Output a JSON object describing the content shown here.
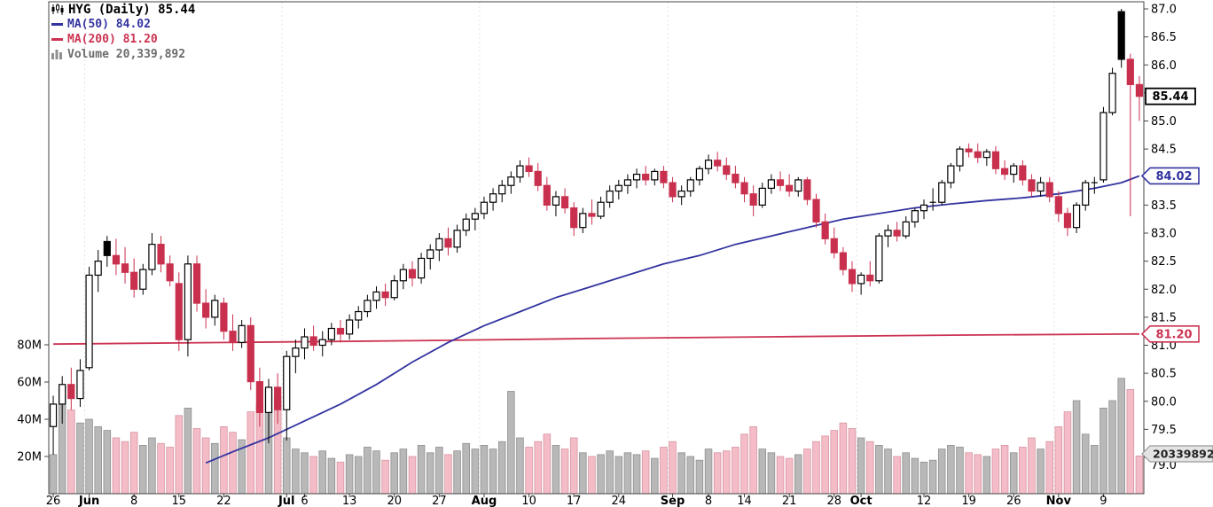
{
  "chart_data": {
    "type": "candlestick",
    "symbol": "HYG",
    "timeframe": "Daily",
    "legend": {
      "title": "HYG (Daily) 85.44",
      "ma50": "MA(50) 84.02",
      "ma200": "MA(200) 81.20",
      "volume": "Volume 20,339,892"
    },
    "last": {
      "price": "85.44",
      "ma50": "84.02",
      "ma200": "81.20",
      "volume": "20339892"
    },
    "price_axis": {
      "min": 79.0,
      "max": 87.0,
      "step": 0.5,
      "hidden_ticks": [
        85.5,
        84.0
      ]
    },
    "volume_axis": {
      "ticks": [
        {
          "v": 80,
          "t": "80M"
        },
        {
          "v": 60,
          "t": "60M"
        },
        {
          "v": 40,
          "t": "40M"
        },
        {
          "v": 20,
          "t": "20M"
        }
      ]
    },
    "x_labels": [
      {
        "i": 0,
        "t": "26"
      },
      {
        "i": 4,
        "t": "Jun",
        "b": 1
      },
      {
        "i": 9,
        "t": "8"
      },
      {
        "i": 14,
        "t": "15"
      },
      {
        "i": 19,
        "t": "22"
      },
      {
        "i": 26,
        "t": "Jul",
        "b": 1
      },
      {
        "i": 28,
        "t": "6"
      },
      {
        "i": 33,
        "t": "13"
      },
      {
        "i": 38,
        "t": "20"
      },
      {
        "i": 43,
        "t": "27"
      },
      {
        "i": 48,
        "t": "Aug",
        "b": 1
      },
      {
        "i": 53,
        "t": "10"
      },
      {
        "i": 58,
        "t": "17"
      },
      {
        "i": 63,
        "t": "24"
      },
      {
        "i": 69,
        "t": "Sep",
        "b": 1
      },
      {
        "i": 73,
        "t": "8"
      },
      {
        "i": 77,
        "t": "14"
      },
      {
        "i": 82,
        "t": "21"
      },
      {
        "i": 87,
        "t": "28"
      },
      {
        "i": 90,
        "t": "Oct",
        "b": 1
      },
      {
        "i": 97,
        "t": "12"
      },
      {
        "i": 102,
        "t": "19"
      },
      {
        "i": 107,
        "t": "26"
      },
      {
        "i": 112,
        "t": "Nov",
        "b": 1
      },
      {
        "i": 117,
        "t": "9"
      }
    ],
    "month_start_indices": [
      4,
      26,
      48,
      69,
      90,
      112
    ],
    "ohlcv": [
      [
        79.55,
        80.1,
        79.05,
        79.95,
        21
      ],
      [
        79.95,
        80.45,
        79.6,
        80.3,
        58
      ],
      [
        80.3,
        80.6,
        79.85,
        80.05,
        45
      ],
      [
        80.05,
        80.75,
        79.9,
        80.55,
        38
      ],
      [
        80.6,
        82.4,
        80.55,
        82.25,
        40
      ],
      [
        82.25,
        82.7,
        81.95,
        82.5,
        36
      ],
      [
        82.85,
        82.95,
        82.4,
        82.6,
        34
      ],
      [
        82.6,
        82.9,
        82.25,
        82.45,
        30
      ],
      [
        82.45,
        82.75,
        82.1,
        82.3,
        28
      ],
      [
        82.3,
        82.55,
        81.85,
        82.0,
        33
      ],
      [
        82.0,
        82.45,
        81.9,
        82.35,
        26
      ],
      [
        82.35,
        83.0,
        82.25,
        82.8,
        30
      ],
      [
        82.8,
        82.95,
        82.3,
        82.45,
        27
      ],
      [
        82.45,
        82.6,
        82.05,
        82.15,
        25
      ],
      [
        82.1,
        82.3,
        80.9,
        81.1,
        42
      ],
      [
        81.1,
        82.6,
        80.8,
        82.45,
        46
      ],
      [
        82.45,
        82.6,
        81.6,
        81.75,
        35
      ],
      [
        81.75,
        82.0,
        81.3,
        81.5,
        30
      ],
      [
        81.5,
        81.9,
        81.35,
        81.8,
        27
      ],
      [
        81.75,
        81.85,
        81.1,
        81.25,
        36
      ],
      [
        81.25,
        81.55,
        80.9,
        81.05,
        33
      ],
      [
        81.05,
        81.45,
        80.95,
        81.35,
        29
      ],
      [
        81.35,
        81.5,
        80.2,
        80.35,
        44
      ],
      [
        80.35,
        80.6,
        79.55,
        79.8,
        48
      ],
      [
        79.8,
        80.4,
        79.25,
        80.25,
        56
      ],
      [
        80.25,
        80.5,
        79.6,
        79.85,
        52
      ],
      [
        79.85,
        80.9,
        79.3,
        80.8,
        30
      ],
      [
        80.8,
        81.1,
        80.5,
        80.95,
        24
      ],
      [
        80.95,
        81.3,
        80.75,
        81.15,
        22
      ],
      [
        81.15,
        81.35,
        80.9,
        81.0,
        20
      ],
      [
        81.0,
        81.25,
        80.8,
        81.1,
        23
      ],
      [
        81.1,
        81.4,
        81.0,
        81.3,
        19
      ],
      [
        81.3,
        81.45,
        81.05,
        81.2,
        17
      ],
      [
        81.2,
        81.55,
        81.1,
        81.45,
        21
      ],
      [
        81.45,
        81.7,
        81.3,
        81.6,
        20
      ],
      [
        81.6,
        81.9,
        81.5,
        81.8,
        25
      ],
      [
        81.8,
        82.05,
        81.65,
        81.95,
        23
      ],
      [
        81.95,
        82.1,
        81.7,
        81.85,
        18
      ],
      [
        81.85,
        82.25,
        81.8,
        82.15,
        22
      ],
      [
        82.15,
        82.45,
        82.0,
        82.35,
        24
      ],
      [
        82.35,
        82.5,
        82.05,
        82.2,
        20
      ],
      [
        82.2,
        82.65,
        82.1,
        82.55,
        26
      ],
      [
        82.55,
        82.8,
        82.35,
        82.7,
        22
      ],
      [
        82.7,
        83.0,
        82.5,
        82.9,
        25
      ],
      [
        82.9,
        83.1,
        82.6,
        82.75,
        21
      ],
      [
        82.75,
        83.15,
        82.65,
        83.05,
        23
      ],
      [
        83.05,
        83.35,
        82.95,
        83.25,
        27
      ],
      [
        83.25,
        83.45,
        83.05,
        83.35,
        24
      ],
      [
        83.35,
        83.65,
        83.25,
        83.55,
        26
      ],
      [
        83.55,
        83.8,
        83.4,
        83.7,
        24
      ],
      [
        83.7,
        83.95,
        83.55,
        83.85,
        28
      ],
      [
        83.85,
        84.1,
        83.7,
        84.0,
        55
      ],
      [
        84.0,
        84.3,
        83.9,
        84.2,
        30
      ],
      [
        84.2,
        84.35,
        84.0,
        84.1,
        25
      ],
      [
        84.1,
        84.25,
        83.75,
        83.85,
        28
      ],
      [
        83.85,
        84.0,
        83.4,
        83.5,
        32
      ],
      [
        83.5,
        83.75,
        83.3,
        83.65,
        26
      ],
      [
        83.65,
        83.8,
        83.35,
        83.45,
        24
      ],
      [
        83.45,
        83.55,
        82.95,
        83.1,
        30
      ],
      [
        83.1,
        83.45,
        83.0,
        83.35,
        22
      ],
      [
        83.35,
        83.6,
        83.15,
        83.3,
        20
      ],
      [
        83.3,
        83.65,
        83.25,
        83.55,
        21
      ],
      [
        83.55,
        83.85,
        83.45,
        83.75,
        23
      ],
      [
        83.75,
        83.95,
        83.6,
        83.85,
        20
      ],
      [
        83.85,
        84.05,
        83.7,
        83.95,
        22
      ],
      [
        83.95,
        84.15,
        83.8,
        84.05,
        21
      ],
      [
        84.05,
        84.2,
        83.85,
        83.95,
        23
      ],
      [
        83.95,
        84.15,
        83.85,
        84.1,
        19
      ],
      [
        84.1,
        84.2,
        83.8,
        83.9,
        25
      ],
      [
        83.9,
        84.0,
        83.55,
        83.65,
        28
      ],
      [
        83.65,
        83.85,
        83.5,
        83.75,
        22
      ],
      [
        83.75,
        84.0,
        83.65,
        83.95,
        20
      ],
      [
        83.95,
        84.2,
        83.85,
        84.15,
        18
      ],
      [
        84.15,
        84.4,
        84.05,
        84.3,
        24
      ],
      [
        84.3,
        84.45,
        84.1,
        84.2,
        22
      ],
      [
        84.2,
        84.35,
        83.95,
        84.05,
        23
      ],
      [
        84.05,
        84.2,
        83.8,
        83.9,
        25
      ],
      [
        83.9,
        84.0,
        83.55,
        83.7,
        32
      ],
      [
        83.7,
        83.85,
        83.3,
        83.5,
        36
      ],
      [
        83.5,
        83.9,
        83.45,
        83.8,
        24
      ],
      [
        83.8,
        84.05,
        83.7,
        83.95,
        22
      ],
      [
        83.95,
        84.1,
        83.75,
        83.85,
        20
      ],
      [
        83.85,
        84.05,
        83.65,
        83.75,
        19
      ],
      [
        83.75,
        84.0,
        83.65,
        83.95,
        21
      ],
      [
        83.95,
        84.0,
        83.5,
        83.6,
        24
      ],
      [
        83.6,
        83.7,
        83.1,
        83.2,
        28
      ],
      [
        83.2,
        83.35,
        82.8,
        82.9,
        31
      ],
      [
        82.9,
        83.1,
        82.55,
        82.65,
        34
      ],
      [
        82.65,
        82.75,
        82.25,
        82.35,
        38
      ],
      [
        82.35,
        82.5,
        81.95,
        82.1,
        35
      ],
      [
        82.1,
        82.3,
        81.9,
        82.25,
        30
      ],
      [
        82.25,
        82.5,
        82.05,
        82.15,
        28
      ],
      [
        82.15,
        83.0,
        82.1,
        82.95,
        26
      ],
      [
        82.95,
        83.15,
        82.75,
        83.05,
        24
      ],
      [
        83.05,
        83.2,
        82.85,
        82.95,
        20
      ],
      [
        82.95,
        83.3,
        82.9,
        83.2,
        22
      ],
      [
        83.2,
        83.45,
        83.1,
        83.4,
        19
      ],
      [
        83.4,
        83.6,
        83.25,
        83.5,
        17
      ],
      [
        83.55,
        83.8,
        83.4,
        83.55,
        18
      ],
      [
        83.55,
        83.95,
        83.5,
        83.9,
        24
      ],
      [
        83.9,
        84.25,
        83.8,
        84.2,
        26
      ],
      [
        84.2,
        84.55,
        84.1,
        84.5,
        25
      ],
      [
        84.5,
        84.6,
        84.35,
        84.45,
        22
      ],
      [
        84.45,
        84.6,
        84.25,
        84.35,
        21
      ],
      [
        84.35,
        84.5,
        84.2,
        84.45,
        20
      ],
      [
        84.45,
        84.55,
        84.05,
        84.15,
        24
      ],
      [
        84.15,
        84.3,
        83.95,
        84.05,
        26
      ],
      [
        84.05,
        84.25,
        83.9,
        84.2,
        22
      ],
      [
        84.2,
        84.3,
        83.85,
        83.95,
        25
      ],
      [
        83.95,
        84.05,
        83.65,
        83.75,
        30
      ],
      [
        83.75,
        84.0,
        83.65,
        83.9,
        24
      ],
      [
        83.9,
        84.0,
        83.55,
        83.65,
        28
      ],
      [
        83.65,
        83.75,
        83.2,
        83.35,
        36
      ],
      [
        83.35,
        83.45,
        82.95,
        83.1,
        44
      ],
      [
        83.1,
        83.55,
        83.0,
        83.5,
        50
      ],
      [
        83.5,
        83.95,
        83.4,
        83.9,
        32
      ],
      [
        83.9,
        84.0,
        83.7,
        83.9,
        26
      ],
      [
        83.95,
        85.25,
        83.9,
        85.15,
        46
      ],
      [
        85.15,
        85.95,
        85.1,
        85.85,
        50
      ],
      [
        86.95,
        87.0,
        85.95,
        86.1,
        62
      ],
      [
        86.1,
        86.2,
        83.3,
        85.65,
        56
      ],
      [
        85.65,
        85.8,
        85.0,
        85.44,
        20.3
      ]
    ],
    "ma50_points": [
      [
        17,
        78.9
      ],
      [
        20,
        79.1
      ],
      [
        24,
        79.35
      ],
      [
        28,
        79.65
      ],
      [
        32,
        79.95
      ],
      [
        36,
        80.3
      ],
      [
        40,
        80.7
      ],
      [
        44,
        81.05
      ],
      [
        48,
        81.35
      ],
      [
        52,
        81.6
      ],
      [
        56,
        81.85
      ],
      [
        60,
        82.05
      ],
      [
        64,
        82.25
      ],
      [
        68,
        82.45
      ],
      [
        72,
        82.6
      ],
      [
        76,
        82.8
      ],
      [
        80,
        82.95
      ],
      [
        84,
        83.1
      ],
      [
        88,
        83.25
      ],
      [
        92,
        83.35
      ],
      [
        96,
        83.45
      ],
      [
        100,
        83.52
      ],
      [
        104,
        83.58
      ],
      [
        108,
        83.63
      ],
      [
        112,
        83.7
      ],
      [
        116,
        83.8
      ],
      [
        119,
        83.9
      ],
      [
        121,
        84.02
      ]
    ],
    "ma200_points": [
      [
        0,
        81.02
      ],
      [
        20,
        81.05
      ],
      [
        40,
        81.08
      ],
      [
        60,
        81.12
      ],
      [
        80,
        81.15
      ],
      [
        100,
        81.18
      ],
      [
        121,
        81.2
      ]
    ],
    "colors": {
      "up": "#000000",
      "down": "#c9304e",
      "ma50": "#3333a0",
      "ma200": "#cc3352",
      "vol_up_fill": "#b8b8b8",
      "vol_up_stroke": "#8f8f8f",
      "vol_down_fill": "#f3bcc6",
      "vol_down_stroke": "#d894a2",
      "grid": "#e3e3e3",
      "axis": "#444444",
      "volume_text": "#6b6b6b"
    }
  }
}
